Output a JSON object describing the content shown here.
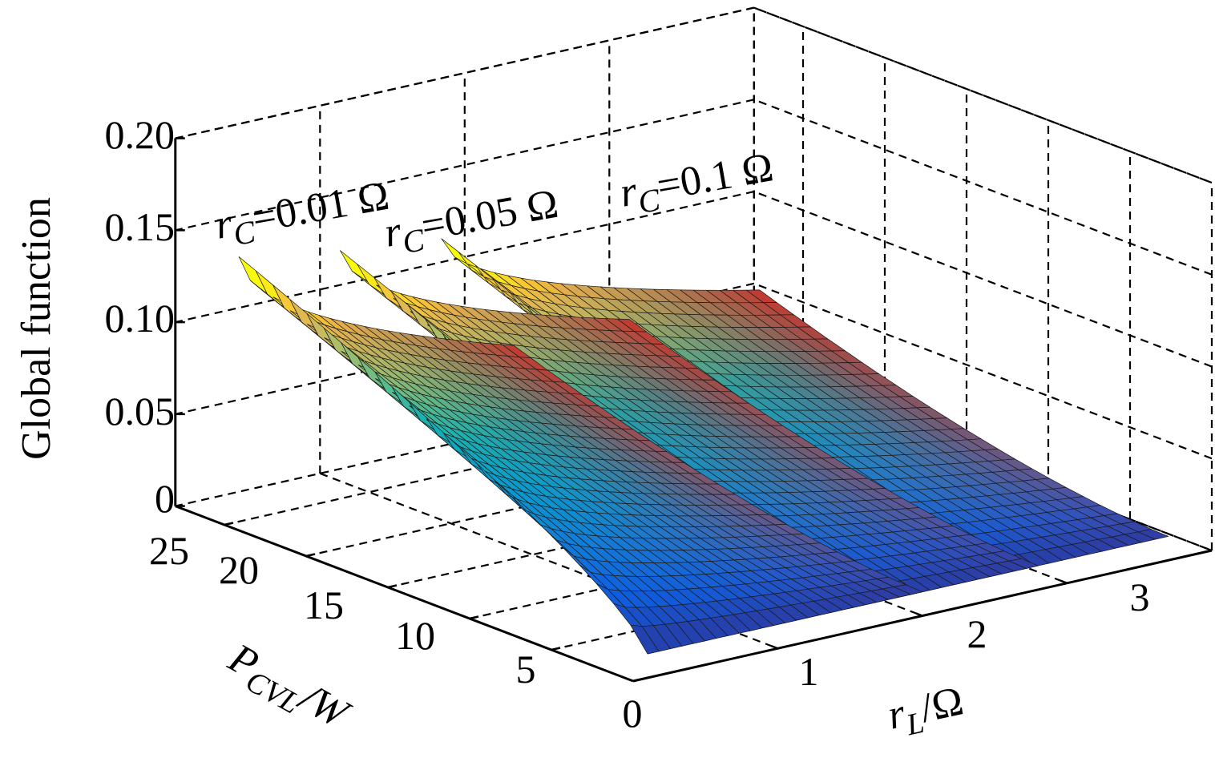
{
  "chart_data": {
    "type": "surface",
    "zlabel": "Global function",
    "xlabel": "P_CVL/W",
    "ylabel": "r_L/Ω",
    "xlabel_parts": {
      "main": "P",
      "sub": "CVL",
      "rest": "/W"
    },
    "ylabel_parts": {
      "main": "r",
      "sub": "L",
      "rest": "/Ω"
    },
    "x_ticks": [
      0,
      5,
      10,
      15,
      20,
      25
    ],
    "y_ticks": [
      1,
      2,
      3
    ],
    "z_ticks": [
      "0",
      "0.05",
      "0.10",
      "0.15",
      "0.20"
    ],
    "z_tick_values": [
      0,
      0.05,
      0.1,
      0.15,
      0.2
    ],
    "xlim": [
      0,
      28
    ],
    "ylim": [
      0,
      4
    ],
    "zlim": [
      0,
      0.2
    ],
    "grid": true,
    "colormap": "parula",
    "series": [
      {
        "name": "r_C=0.01 Ω",
        "label_main": "r",
        "label_sub": "C",
        "label_rest": "=0.01 Ω",
        "x_range": [
          0,
          25
        ],
        "y_range": [
          0.1,
          2.0
        ],
        "peak": 0.144,
        "corner": 0.062,
        "base": 0.013
      },
      {
        "name": "r_C=0.05 Ω",
        "label_main": "r",
        "label_sub": "C",
        "label_rest": "=0.05 Ω",
        "x_range": [
          0,
          25
        ],
        "y_range": [
          0.8,
          2.8
        ],
        "peak": 0.135,
        "corner": 0.062,
        "base": 0.013
      },
      {
        "name": "r_C=0.1 Ω",
        "label_main": "r",
        "label_sub": "C",
        "label_rest": "=0.1 Ω",
        "x_range": [
          0,
          25
        ],
        "y_range": [
          1.5,
          3.7
        ],
        "peak": 0.129,
        "corner": 0.062,
        "base": 0.013
      }
    ]
  }
}
